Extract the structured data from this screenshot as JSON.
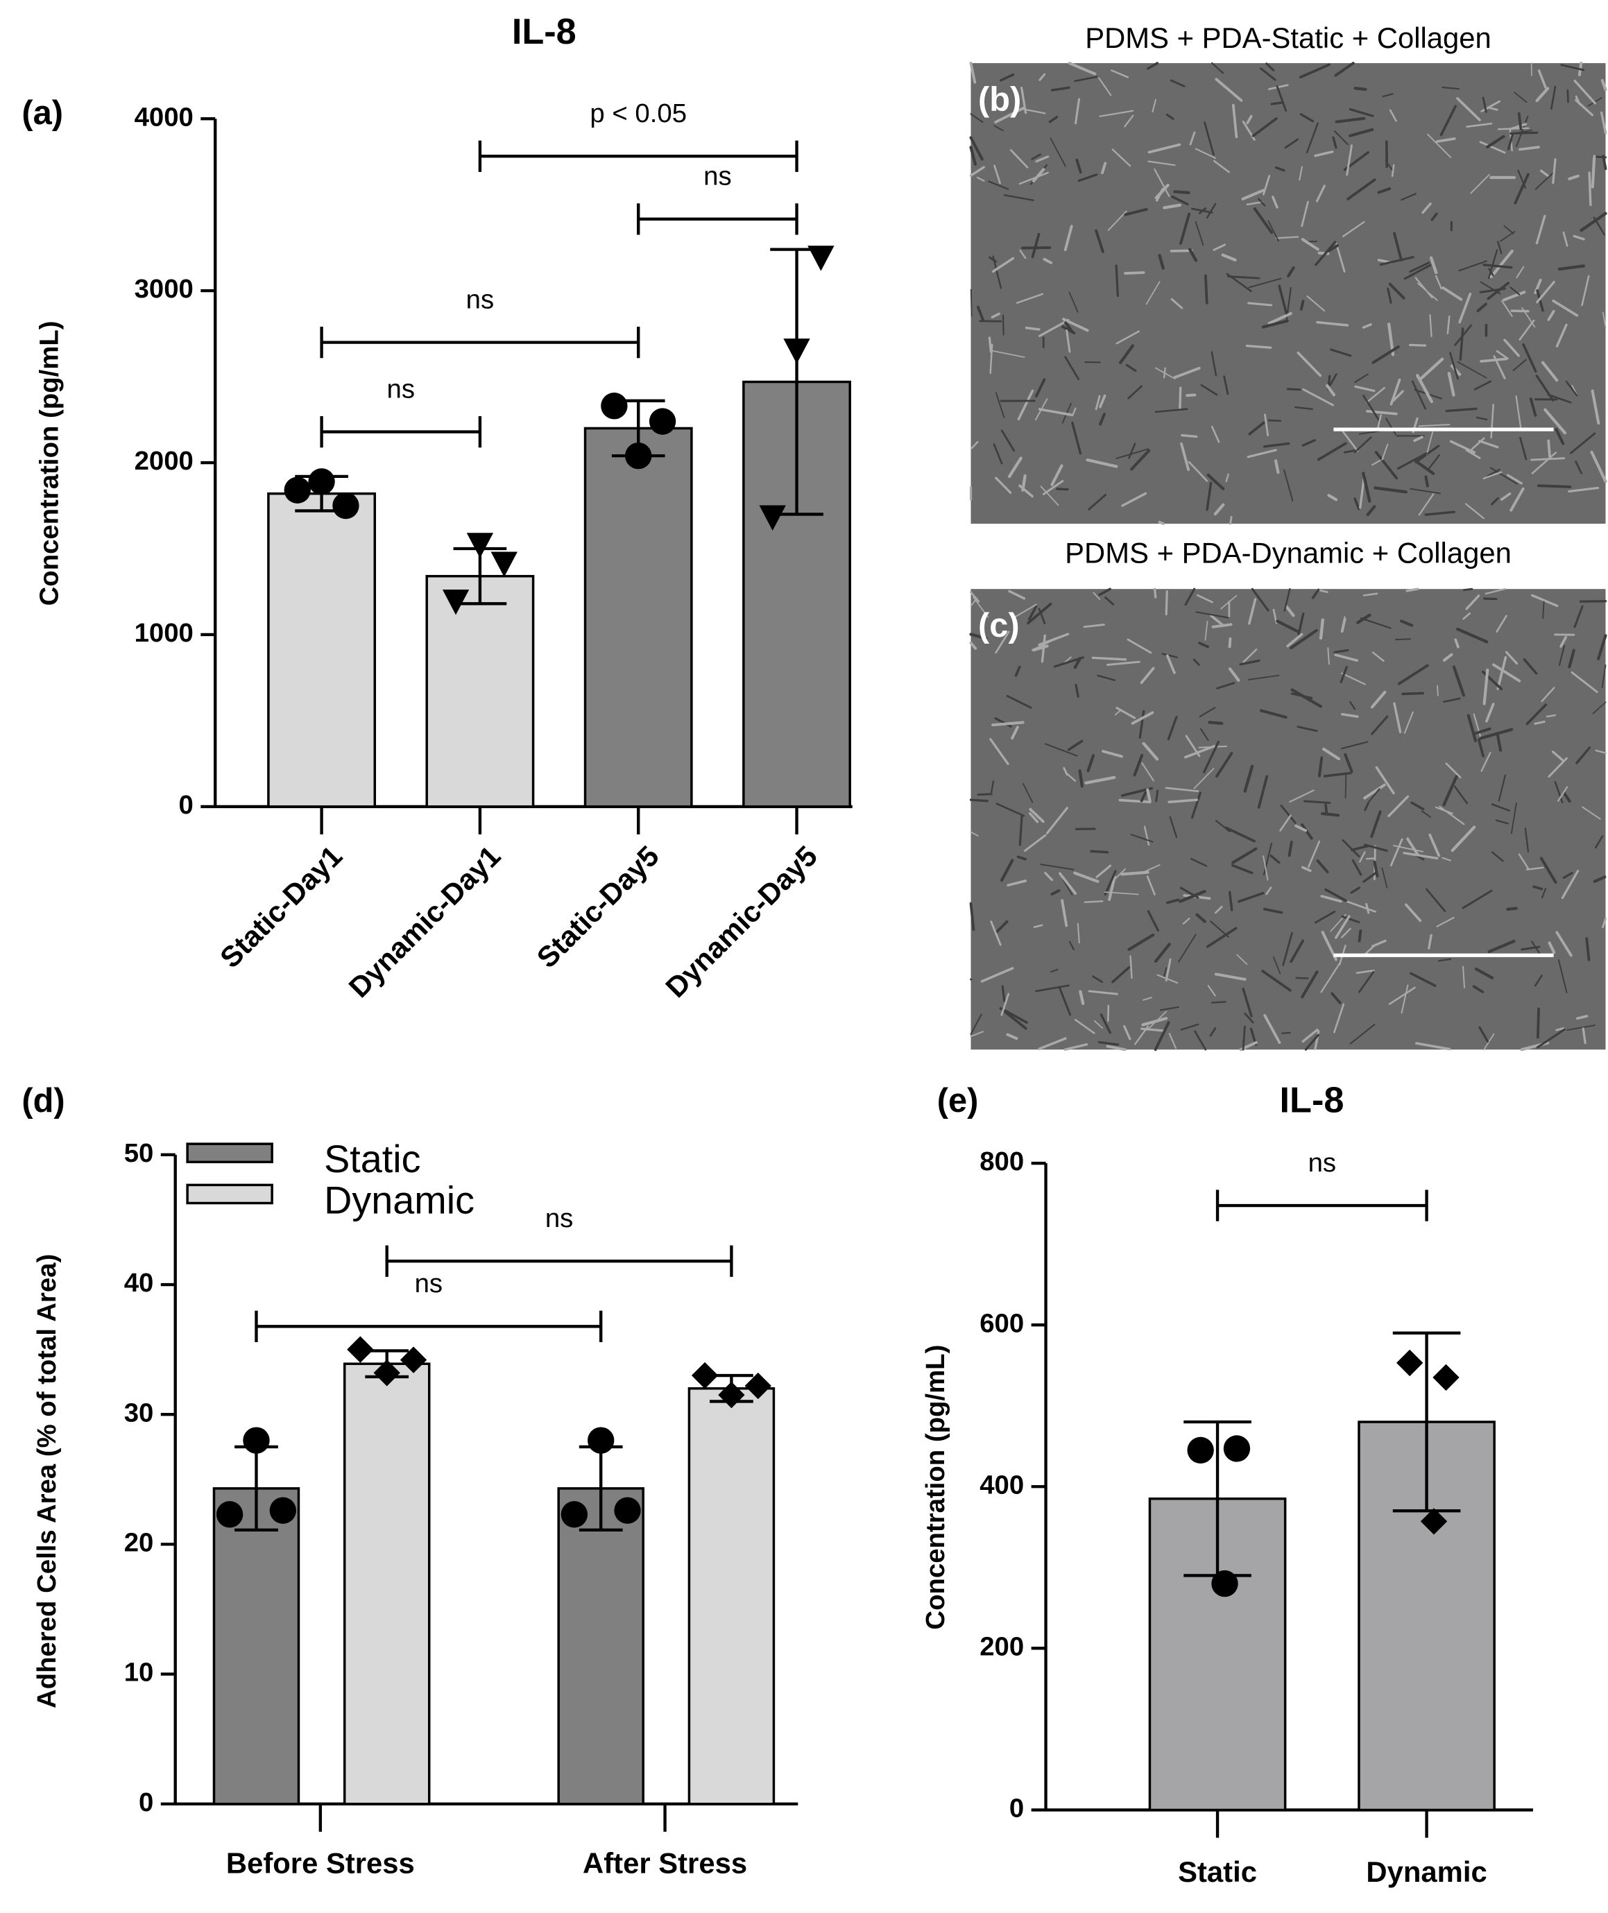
{
  "chart_data": [
    {
      "type": "bar",
      "panel_label": "(a)",
      "title": "IL-8",
      "y_label": "Concentration (pg/mL)",
      "categories": [
        "Static-Day1",
        "Dynamic-Day1",
        "Static-Day5",
        "Dynamic-Day5"
      ],
      "values": [
        1820,
        1340,
        2200,
        2470
      ],
      "errors": [
        100,
        160,
        160,
        770
      ],
      "colors": [
        "#d9d9d9",
        "#d9d9d9",
        "#808080",
        "#808080"
      ],
      "markers": [
        "circle",
        "triangle-down",
        "circle",
        "triangle-down"
      ],
      "points": [
        [
          1840,
          1890,
          1750
        ],
        [
          1200,
          1530,
          1420
        ],
        [
          2330,
          2040,
          2240
        ],
        [
          1690,
          2660,
          3200
        ]
      ],
      "ylim": [
        0,
        4000
      ],
      "yticks": [
        0,
        1000,
        2000,
        3000,
        4000
      ],
      "brackets": [
        {
          "label": "ns",
          "from": 0,
          "to": 1
        },
        {
          "label": "ns",
          "from": 0,
          "to": 2
        },
        {
          "label": "ns",
          "from": 2,
          "to": 3
        },
        {
          "label": "p < 0.05",
          "from": 1,
          "to": 3
        }
      ]
    },
    {
      "type": "grouped_bar",
      "panel_label": "(d)",
      "y_label": "Adhered Cells Area (% of total Area)",
      "categories": [
        "Before Stress",
        "After Stress"
      ],
      "series": [
        {
          "name": "Static",
          "color": "#808080",
          "marker": "circle",
          "values": [
            24.3,
            24.3
          ],
          "errors": [
            3.2,
            3.2
          ],
          "points": [
            [
              22.3,
              28,
              22.6
            ],
            [
              22.3,
              28,
              22.6
            ]
          ]
        },
        {
          "name": "Dynamic",
          "color": "#d9d9d9",
          "marker": "diamond",
          "values": [
            33.9,
            32.0
          ],
          "errors": [
            1,
            1
          ],
          "points": [
            [
              35,
              33.2,
              34.2
            ],
            [
              33,
              31.5,
              32.2
            ]
          ]
        }
      ],
      "ylim": [
        0,
        50
      ],
      "yticks": [
        0,
        10,
        20,
        30,
        40,
        50
      ],
      "legend": "top-left",
      "brackets": [
        {
          "label": "ns",
          "from": [
            0,
            0
          ],
          "to": [
            1,
            0
          ]
        },
        {
          "label": "ns",
          "from": [
            0,
            1
          ],
          "to": [
            1,
            1
          ]
        }
      ]
    },
    {
      "type": "bar",
      "panel_label": "(e)",
      "title": "IL-8",
      "y_label": "Concentration (pg/mL)",
      "categories": [
        "Static",
        "Dynamic"
      ],
      "values": [
        385,
        480
      ],
      "errors": [
        95,
        110
      ],
      "colors": [
        "#a5a5a8",
        "#a5a5a8"
      ],
      "markers": [
        "circle",
        "diamond"
      ],
      "points": [
        [
          445,
          280,
          447
        ],
        [
          553,
          357,
          535
        ]
      ],
      "ylim": [
        0,
        800
      ],
      "yticks": [
        0,
        200,
        400,
        600,
        800
      ],
      "brackets": [
        {
          "label": "ns",
          "from": 0,
          "to": 1
        }
      ]
    }
  ],
  "panels": [
    {
      "label": "(b)",
      "title": "PDMS + PDA-Static + Collagen"
    },
    {
      "label": "(c)",
      "title": "PDMS + PDA-Dynamic + Collagen"
    }
  ]
}
